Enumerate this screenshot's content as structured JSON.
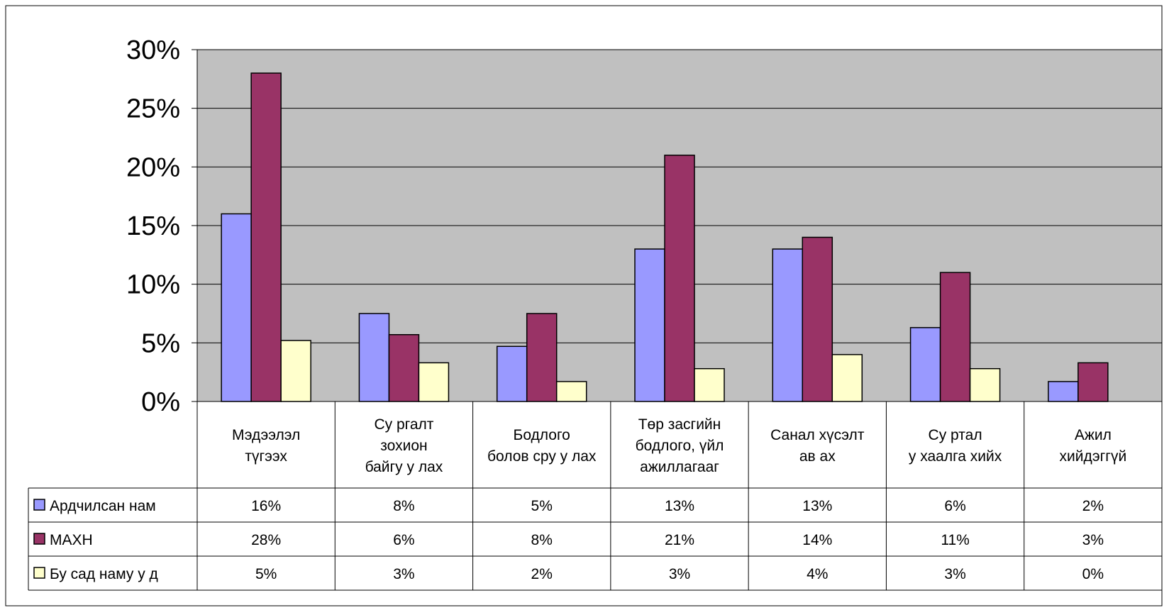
{
  "chart_data": {
    "type": "bar",
    "categories": [
      [
        "Мэдээлэл",
        "түгээх"
      ],
      [
        "Су ргалт",
        "зохион",
        "байгу у лах"
      ],
      [
        "Бодлого",
        "болов сру у лах"
      ],
      [
        "Төр засгийн",
        "бодлого, үйл",
        "ажиллагааг"
      ],
      [
        "Санал хүсэлт",
        "ав ах"
      ],
      [
        "Су ртал",
        "у хаалга хийх"
      ],
      [
        "Ажил",
        "хийдэггүй"
      ]
    ],
    "series": [
      {
        "name": "Ардчилсан нам",
        "color": "#9999ff",
        "values": [
          16,
          7.5,
          4.7,
          13,
          13,
          6.3,
          1.7
        ],
        "labels": [
          "16%",
          "8%",
          "5%",
          "13%",
          "13%",
          "6%",
          "2%"
        ]
      },
      {
        "name": "МАХН",
        "color": "#993366",
        "values": [
          28,
          5.7,
          7.5,
          21,
          14,
          11,
          3.3
        ],
        "labels": [
          "28%",
          "6%",
          "8%",
          "21%",
          "14%",
          "11%",
          "3%"
        ]
      },
      {
        "name": "Бу сад наму у д",
        "color": "#ffffcc",
        "values": [
          5.2,
          3.3,
          1.7,
          2.8,
          4,
          2.8,
          0
        ],
        "labels": [
          "5%",
          "3%",
          "2%",
          "3%",
          "4%",
          "3%",
          "0%"
        ]
      }
    ],
    "ylim": [
      0,
      30
    ],
    "yticks": [
      "0%",
      "5%",
      "10%",
      "15%",
      "20%",
      "25%",
      "30%"
    ],
    "plot_background": "#c0c0c0",
    "grid": true,
    "legend": "data-table"
  }
}
